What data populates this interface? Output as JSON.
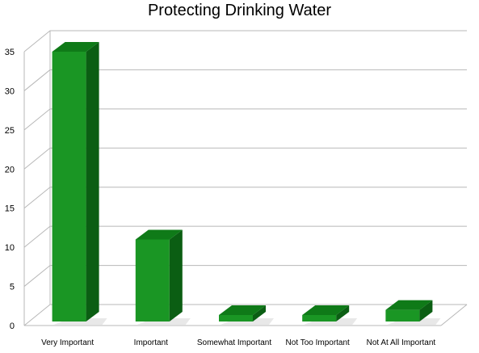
{
  "chart_data": {
    "type": "bar",
    "title": "Protecting Drinking Water",
    "xlabel": "",
    "ylabel": "",
    "categories": [
      "Very Important",
      "Important",
      "Somewhat Important",
      "Not Too Important",
      "Not At All Important"
    ],
    "values": [
      35,
      11,
      1,
      1,
      2
    ],
    "ylim": [
      0,
      35
    ],
    "yticks": [
      "0",
      "5",
      "10",
      "15",
      "20",
      "25",
      "30",
      "35"
    ],
    "grid": true,
    "style": "3d",
    "colors": {
      "bar_front": "#1a9624",
      "bar_top": "#0f7a18",
      "bar_side": "#0b5e13",
      "grid": "#b8b8b8"
    }
  }
}
